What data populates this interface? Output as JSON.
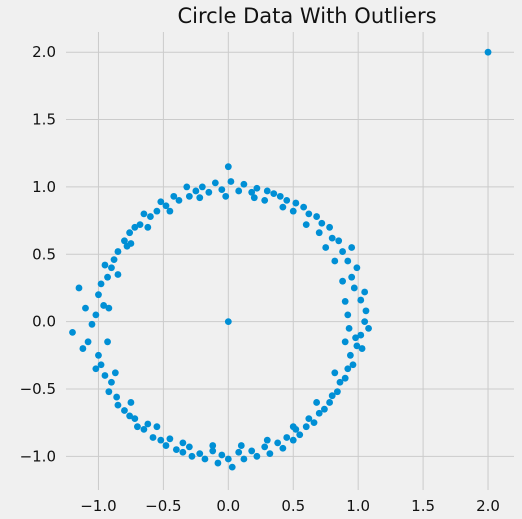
{
  "chart_data": {
    "type": "scatter",
    "title": "Circle Data With Outliers",
    "xlabel": "",
    "ylabel": "",
    "xlim": [
      -1.25,
      2.2
    ],
    "ylim": [
      -1.25,
      2.15
    ],
    "x_ticks": [
      -1.0,
      -0.5,
      0.0,
      0.5,
      1.0,
      1.5,
      2.0
    ],
    "x_tick_labels": [
      "−1.0",
      "−0.5",
      "0.0",
      "0.5",
      "1.0",
      "1.5",
      "2.0"
    ],
    "y_ticks": [
      -1.0,
      -0.5,
      0.0,
      0.5,
      1.0,
      1.5,
      2.0
    ],
    "y_tick_labels": [
      "−1.0",
      "−0.5",
      "0.0",
      "0.5",
      "1.0",
      "1.5",
      "2.0"
    ],
    "grid": true,
    "legend": "none",
    "point_color": "#008fd5",
    "background_color": "#f0f0f0",
    "grid_color": "#cbcbcb",
    "series": [
      {
        "points": [
          [
            2.0,
            2.0
          ],
          [
            0.0,
            0.0
          ],
          [
            1.05,
            0.0
          ],
          [
            1.02,
            0.16
          ],
          [
            1.06,
            0.08
          ],
          [
            0.98,
            -0.12
          ],
          [
            1.08,
            -0.05
          ],
          [
            1.03,
            -0.2
          ],
          [
            0.97,
            0.25
          ],
          [
            1.05,
            0.22
          ],
          [
            0.95,
            0.33
          ],
          [
            0.99,
            0.4
          ],
          [
            0.92,
            0.45
          ],
          [
            0.88,
            0.52
          ],
          [
            0.95,
            0.55
          ],
          [
            0.85,
            0.6
          ],
          [
            0.8,
            0.62
          ],
          [
            0.78,
            0.7
          ],
          [
            0.72,
            0.73
          ],
          [
            0.68,
            0.78
          ],
          [
            0.7,
            0.66
          ],
          [
            0.62,
            0.8
          ],
          [
            0.58,
            0.85
          ],
          [
            0.52,
            0.88
          ],
          [
            0.5,
            0.82
          ],
          [
            0.45,
            0.9
          ],
          [
            0.4,
            0.93
          ],
          [
            0.35,
            0.95
          ],
          [
            0.3,
            0.97
          ],
          [
            0.28,
            0.9
          ],
          [
            0.22,
            0.99
          ],
          [
            0.18,
            0.96
          ],
          [
            0.12,
            1.02
          ],
          [
            0.08,
            0.97
          ],
          [
            0.02,
            1.04
          ],
          [
            0.0,
            1.15
          ],
          [
            -0.05,
            0.98
          ],
          [
            -0.1,
            1.03
          ],
          [
            -0.15,
            0.96
          ],
          [
            -0.2,
            1.0
          ],
          [
            -0.25,
            0.97
          ],
          [
            -0.3,
            0.93
          ],
          [
            -0.32,
            1.0
          ],
          [
            -0.38,
            0.9
          ],
          [
            -0.42,
            0.93
          ],
          [
            -0.48,
            0.86
          ],
          [
            -0.52,
            0.89
          ],
          [
            -0.55,
            0.82
          ],
          [
            -0.6,
            0.78
          ],
          [
            -0.65,
            0.8
          ],
          [
            -0.68,
            0.72
          ],
          [
            -0.72,
            0.7
          ],
          [
            -0.76,
            0.66
          ],
          [
            -0.8,
            0.6
          ],
          [
            -0.78,
            0.56
          ],
          [
            -0.85,
            0.52
          ],
          [
            -0.88,
            0.46
          ],
          [
            -0.9,
            0.4
          ],
          [
            -0.95,
            0.42
          ],
          [
            -0.93,
            0.33
          ],
          [
            -0.98,
            0.28
          ],
          [
            -1.0,
            0.2
          ],
          [
            -0.96,
            0.12
          ],
          [
            -1.02,
            0.05
          ],
          [
            -1.05,
            -0.02
          ],
          [
            -1.1,
            0.1
          ],
          [
            -1.15,
            0.25
          ],
          [
            -1.2,
            -0.08
          ],
          [
            -1.12,
            -0.2
          ],
          [
            -1.08,
            -0.15
          ],
          [
            -1.0,
            -0.25
          ],
          [
            -0.98,
            -0.32
          ],
          [
            -0.95,
            -0.4
          ],
          [
            -1.02,
            -0.35
          ],
          [
            -0.9,
            -0.45
          ],
          [
            -0.92,
            -0.52
          ],
          [
            -0.86,
            -0.56
          ],
          [
            -0.85,
            -0.62
          ],
          [
            -0.8,
            -0.66
          ],
          [
            -0.76,
            -0.7
          ],
          [
            -0.72,
            -0.72
          ],
          [
            -0.7,
            -0.78
          ],
          [
            -0.65,
            -0.8
          ],
          [
            -0.62,
            -0.76
          ],
          [
            -0.58,
            -0.86
          ],
          [
            -0.52,
            -0.88
          ],
          [
            -0.48,
            -0.92
          ],
          [
            -0.45,
            -0.87
          ],
          [
            -0.4,
            -0.95
          ],
          [
            -0.35,
            -0.97
          ],
          [
            -0.3,
            -0.93
          ],
          [
            -0.28,
            -1.0
          ],
          [
            -0.22,
            -0.98
          ],
          [
            -0.18,
            -1.02
          ],
          [
            -0.12,
            -0.96
          ],
          [
            -0.08,
            -1.05
          ],
          [
            -0.05,
            -0.99
          ],
          [
            0.0,
            -1.02
          ],
          [
            0.03,
            -1.08
          ],
          [
            0.08,
            -0.97
          ],
          [
            0.12,
            -1.02
          ],
          [
            0.18,
            -0.96
          ],
          [
            0.22,
            -1.0
          ],
          [
            0.28,
            -0.93
          ],
          [
            0.32,
            -0.98
          ],
          [
            0.38,
            -0.9
          ],
          [
            0.42,
            -0.94
          ],
          [
            0.45,
            -0.86
          ],
          [
            0.5,
            -0.88
          ],
          [
            0.52,
            -0.8
          ],
          [
            0.55,
            -0.84
          ],
          [
            0.6,
            -0.78
          ],
          [
            0.62,
            -0.72
          ],
          [
            0.66,
            -0.75
          ],
          [
            0.7,
            -0.68
          ],
          [
            0.74,
            -0.65
          ],
          [
            0.78,
            -0.6
          ],
          [
            0.8,
            -0.55
          ],
          [
            0.84,
            -0.52
          ],
          [
            0.86,
            -0.45
          ],
          [
            0.9,
            -0.42
          ],
          [
            0.92,
            -0.35
          ],
          [
            0.96,
            -0.32
          ],
          [
            0.94,
            -0.25
          ],
          [
            0.99,
            -0.18
          ],
          [
            1.02,
            -0.1
          ],
          [
            0.9,
            0.15
          ],
          [
            0.93,
            -0.05
          ],
          [
            0.88,
            0.3
          ],
          [
            0.82,
            0.45
          ],
          [
            0.75,
            0.55
          ],
          [
            0.6,
            0.72
          ],
          [
            0.42,
            0.85
          ],
          [
            0.2,
            0.92
          ],
          [
            -0.02,
            0.93
          ],
          [
            -0.22,
            0.92
          ],
          [
            -0.45,
            0.82
          ],
          [
            -0.62,
            0.7
          ],
          [
            -0.75,
            0.58
          ],
          [
            -0.85,
            0.35
          ],
          [
            -0.92,
            0.1
          ],
          [
            -0.93,
            -0.15
          ],
          [
            -0.87,
            -0.38
          ],
          [
            -0.75,
            -0.6
          ],
          [
            -0.55,
            -0.78
          ],
          [
            -0.35,
            -0.9
          ],
          [
            -0.12,
            -0.92
          ],
          [
            0.1,
            -0.92
          ],
          [
            0.3,
            -0.88
          ],
          [
            0.5,
            -0.78
          ],
          [
            0.68,
            -0.6
          ],
          [
            0.82,
            -0.38
          ],
          [
            0.9,
            -0.15
          ],
          [
            0.92,
            0.05
          ]
        ]
      }
    ]
  }
}
